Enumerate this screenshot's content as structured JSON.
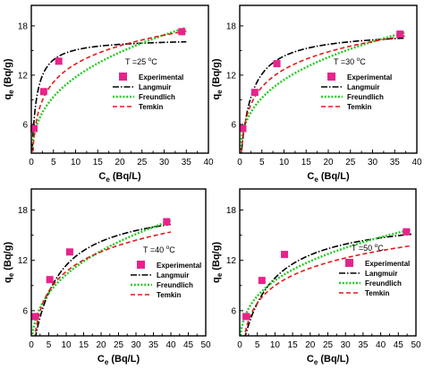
{
  "chart_data": [
    {
      "type": "scatter",
      "annotation": {
        "text": "T =25 ",
        "sup": "o",
        "unit": "C"
      },
      "xlabel": {
        "main": "C",
        "sub": "e",
        "rest": " (Bq/L)"
      },
      "ylabel": {
        "main": "q",
        "sub": "e",
        "rest": " (Bq/g)"
      },
      "xlim": [
        0,
        40
      ],
      "ylim": [
        2.5,
        20.5
      ],
      "xticks": [
        0,
        5,
        10,
        15,
        20,
        25,
        30,
        35,
        40
      ],
      "yticks": [
        6,
        12,
        18
      ],
      "legend_position": "middle-right",
      "experimental": {
        "x": [
          0.6,
          2.8,
          6.2,
          34.0
        ],
        "y": [
          5.5,
          10.0,
          13.7,
          17.3
        ]
      },
      "model_params": {
        "langmuir": {
          "qmax": 16.5,
          "K": 1.05
        },
        "freundlich": {
          "Kf": 5.5,
          "inv_n": 0.33
        },
        "temkin": {
          "B": 3.2,
          "A": 6.5
        }
      },
      "series": [
        {
          "name": "Experimental",
          "style": "marker",
          "color": "#e8238c"
        },
        {
          "name": "Langmuir",
          "style": "dashdot",
          "color": "#000000"
        },
        {
          "name": "Freundlich",
          "style": "dotted",
          "color": "#22cc22"
        },
        {
          "name": "Temkin",
          "style": "dashed",
          "color": "#e21b1b"
        }
      ]
    },
    {
      "type": "scatter",
      "annotation": {
        "text": "T =30 ",
        "sup": "o",
        "unit": "C"
      },
      "xlabel": {
        "main": "C",
        "sub": "e",
        "rest": " (Bq/L)"
      },
      "ylabel": {
        "main": "q",
        "sub": "e",
        "rest": " (Bq/g)"
      },
      "xlim": [
        0,
        40
      ],
      "ylim": [
        2.5,
        20.5
      ],
      "xticks": [
        0,
        5,
        10,
        15,
        20,
        25,
        30,
        35,
        40
      ],
      "yticks": [
        6,
        12,
        18
      ],
      "legend_position": "middle-right",
      "experimental": {
        "x": [
          0.7,
          3.4,
          8.4,
          36.2
        ],
        "y": [
          5.5,
          9.9,
          13.4,
          17.0
        ]
      },
      "model_params": {
        "langmuir": {
          "qmax": 17.5,
          "K": 0.45
        },
        "freundlich": {
          "Kf": 5.6,
          "inv_n": 0.31
        },
        "temkin": {
          "B": 3.1,
          "A": 6.0
        }
      },
      "series": [
        {
          "name": "Experimental",
          "style": "marker",
          "color": "#e8238c"
        },
        {
          "name": "Langmuir",
          "style": "dashdot",
          "color": "#000000"
        },
        {
          "name": "Freundlich",
          "style": "dotted",
          "color": "#22cc22"
        },
        {
          "name": "Temkin",
          "style": "dashed",
          "color": "#e21b1b"
        }
      ]
    },
    {
      "type": "scatter",
      "annotation": {
        "text": "T =40 ",
        "sup": "o",
        "unit": "C"
      },
      "xlabel": {
        "main": "C",
        "sub": "e",
        "rest": " (Bq/L)"
      },
      "ylabel": {
        "main": "q",
        "sub": "e",
        "rest": " (Bq/g)"
      },
      "xlim": [
        0,
        50
      ],
      "ylim": [
        3,
        20.5
      ],
      "xticks": [
        0,
        5,
        10,
        15,
        20,
        25,
        30,
        35,
        40,
        45,
        50
      ],
      "yticks": [
        6,
        12,
        18
      ],
      "legend_position": "middle-right",
      "experimental": {
        "x": [
          1.1,
          5.3,
          11.0,
          38.8
        ],
        "y": [
          5.3,
          9.7,
          13.0,
          16.6
        ]
      },
      "model_params": {
        "langmuir": {
          "qmax": 19.0,
          "K": 0.15
        },
        "freundlich": {
          "Kf": 4.6,
          "inv_n": 0.35
        },
        "temkin": {
          "B": 3.4,
          "A": 2.3
        }
      },
      "series": [
        {
          "name": "Experimental",
          "style": "marker",
          "color": "#e8238c"
        },
        {
          "name": "Langmuir",
          "style": "dashdot",
          "color": "#000000"
        },
        {
          "name": "Freundlich",
          "style": "dotted",
          "color": "#22cc22"
        },
        {
          "name": "Temkin",
          "style": "dashed",
          "color": "#e21b1b"
        }
      ]
    },
    {
      "type": "scatter",
      "annotation": {
        "text": "T =50 ",
        "sup": "o",
        "unit": "C"
      },
      "xlabel": {
        "main": "C",
        "sub": "e",
        "rest": " (Bq/L)"
      },
      "ylabel": {
        "main": "q",
        "sub": "e",
        "rest": " (Bq/g)"
      },
      "xlim": [
        0,
        50
      ],
      "ylim": [
        3,
        20.5
      ],
      "xticks": [
        0,
        5,
        10,
        15,
        20,
        25,
        30,
        35,
        40,
        45,
        50
      ],
      "yticks": [
        6,
        12,
        18
      ],
      "legend_position": "middle-right",
      "experimental": {
        "x": [
          1.8,
          6.3,
          12.7,
          47.3
        ],
        "y": [
          5.3,
          9.6,
          12.7,
          15.4
        ]
      },
      "model_params": {
        "langmuir": {
          "qmax": 17.5,
          "K": 0.13
        },
        "freundlich": {
          "Kf": 4.7,
          "inv_n": 0.31
        },
        "temkin": {
          "B": 3.0,
          "A": 2.0
        }
      },
      "series": [
        {
          "name": "Experimental",
          "style": "marker",
          "color": "#e8238c"
        },
        {
          "name": "Langmuir",
          "style": "dashdot",
          "color": "#000000"
        },
        {
          "name": "Freundlich",
          "style": "dotted",
          "color": "#22cc22"
        },
        {
          "name": "Temkin",
          "style": "dashed",
          "color": "#e21b1b"
        }
      ]
    }
  ]
}
